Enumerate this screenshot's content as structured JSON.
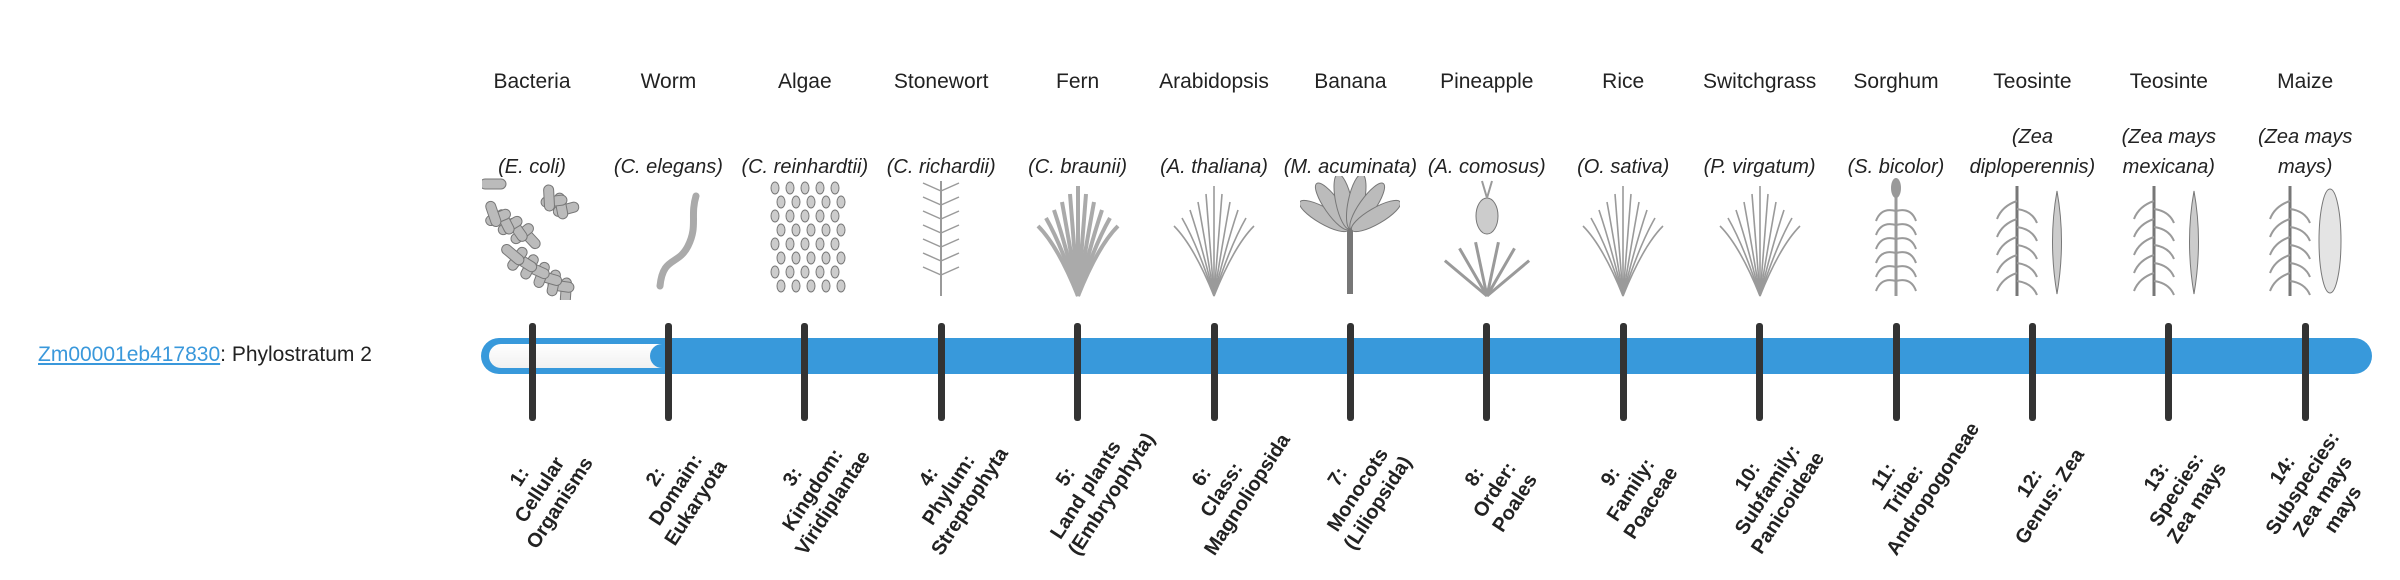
{
  "gene": {
    "id": "Zm00001eb417830",
    "suffix": ": Phylostratum 2",
    "phylostratum": 2
  },
  "colors": {
    "bar": "#3899db",
    "tick": "#333333",
    "link": "#3a98db"
  },
  "strata": [
    {
      "common": "Bacteria",
      "species": "(E. coli)",
      "rank_num": "1:",
      "rank": "Cellular Organisms",
      "icon": "bacteria-icon"
    },
    {
      "common": "Worm",
      "species": "(C. elegans)",
      "rank_num": "2:",
      "rank": "Domain: Eukaryota",
      "icon": "worm-icon"
    },
    {
      "common": "Algae",
      "species": "(C. reinhardtii)",
      "rank_num": "3:",
      "rank": "Kingdom: Viridiplantae",
      "icon": "algae-icon"
    },
    {
      "common": "Stonewort",
      "species": "(C. richardii)",
      "rank_num": "4:",
      "rank": "Phylum: Streptophyta",
      "icon": "stonewort-icon"
    },
    {
      "common": "Fern",
      "species": "(C. braunii)",
      "rank_num": "5:",
      "rank": "Land plants (Embryophyta)",
      "icon": "fern-icon"
    },
    {
      "common": "Arabidopsis",
      "species": "(A. thaliana)",
      "rank_num": "6:",
      "rank": "Class: Magnoliopsida",
      "icon": "arabidopsis-icon"
    },
    {
      "common": "Banana",
      "species": "(M. acuminata)",
      "rank_num": "7:",
      "rank": "Monocots (Liliopsida)",
      "icon": "banana-icon"
    },
    {
      "common": "Pineapple",
      "species": "(A. comosus)",
      "rank_num": "8:",
      "rank": "Order: Poales",
      "icon": "pineapple-icon"
    },
    {
      "common": "Rice",
      "species": "(O. sativa)",
      "rank_num": "9:",
      "rank": "Family: Poaceae",
      "icon": "rice-icon"
    },
    {
      "common": "Switchgrass",
      "species": "(P. virgatum)",
      "rank_num": "10:",
      "rank": "Subfamily: Panicoideae",
      "icon": "switchgrass-icon"
    },
    {
      "common": "Sorghum",
      "species": "(S. bicolor)",
      "rank_num": "11:",
      "rank": "Tribe: Andropogoneae",
      "icon": "sorghum-icon"
    },
    {
      "common": "Teosinte",
      "species": "(Zea diploperennis)",
      "rank_num": "12:",
      "rank": "Genus: Zea",
      "icon": "teosinte-icon"
    },
    {
      "common": "Teosinte",
      "species": "(Zea mays mexicana)",
      "rank_num": "13:",
      "rank": "Species: Zea mays",
      "icon": "teosinte-icon"
    },
    {
      "common": "Maize",
      "species": "(Zea mays mays)",
      "rank_num": "14:",
      "rank": "Subspecies: Zea mays mays",
      "icon": "maize-icon"
    }
  ]
}
